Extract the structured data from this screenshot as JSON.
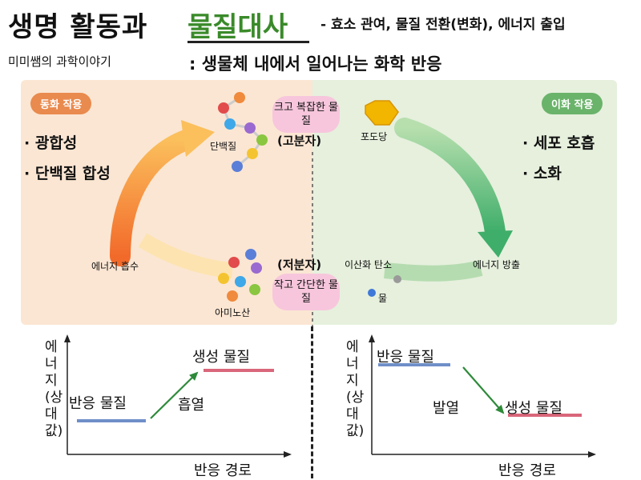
{
  "header": {
    "title_plain": "생명 활동과",
    "title_highlight": "물질대사",
    "title_sub": "- 효소 관여, 물질 전환(변화), 에너지 출입",
    "definition": ": 생물체 내에서 일어나는 화학 반응",
    "credit": "미미쌤의 과학이야기"
  },
  "diagram": {
    "anabolism_label": "동화 작용",
    "catabolism_label": "이화 작용",
    "anabolism_examples": [
      "· 광합성",
      "· 단백질 합성"
    ],
    "catabolism_examples": [
      "· 세포 호흡",
      "· 소화"
    ],
    "large_molecule_box": "크고 복잡한 물질",
    "large_molecule_tag": "(고분자)",
    "small_molecule_box": "작고 간단한 물질",
    "small_molecule_tag": "(저분자)",
    "protein": "단백질",
    "glucose": "포도당",
    "amino_acid": "아미노산",
    "carbon_dioxide": "이산화 탄소",
    "water": "물",
    "energy_in": "에너지 흡수",
    "energy_out": "에너지 방출",
    "colors": {
      "anabolism": "#f08a3c",
      "catabolism": "#4fb070",
      "bubble": "#f7c6dc"
    }
  },
  "graphs": {
    "y_axis": "에너지(상대값)",
    "x_axis": "반응 경로",
    "reactant": "반응 물질",
    "product": "생성 물질",
    "endothermic": "흡열",
    "exothermic": "발열",
    "left_levels": {
      "reactant": 0.3,
      "product": 0.75
    },
    "right_levels": {
      "reactant": 0.8,
      "product": 0.35
    },
    "colors": {
      "reactant": "#6f8fc8",
      "product": "#d9667a",
      "arrow": "#2e8a3a"
    }
  }
}
